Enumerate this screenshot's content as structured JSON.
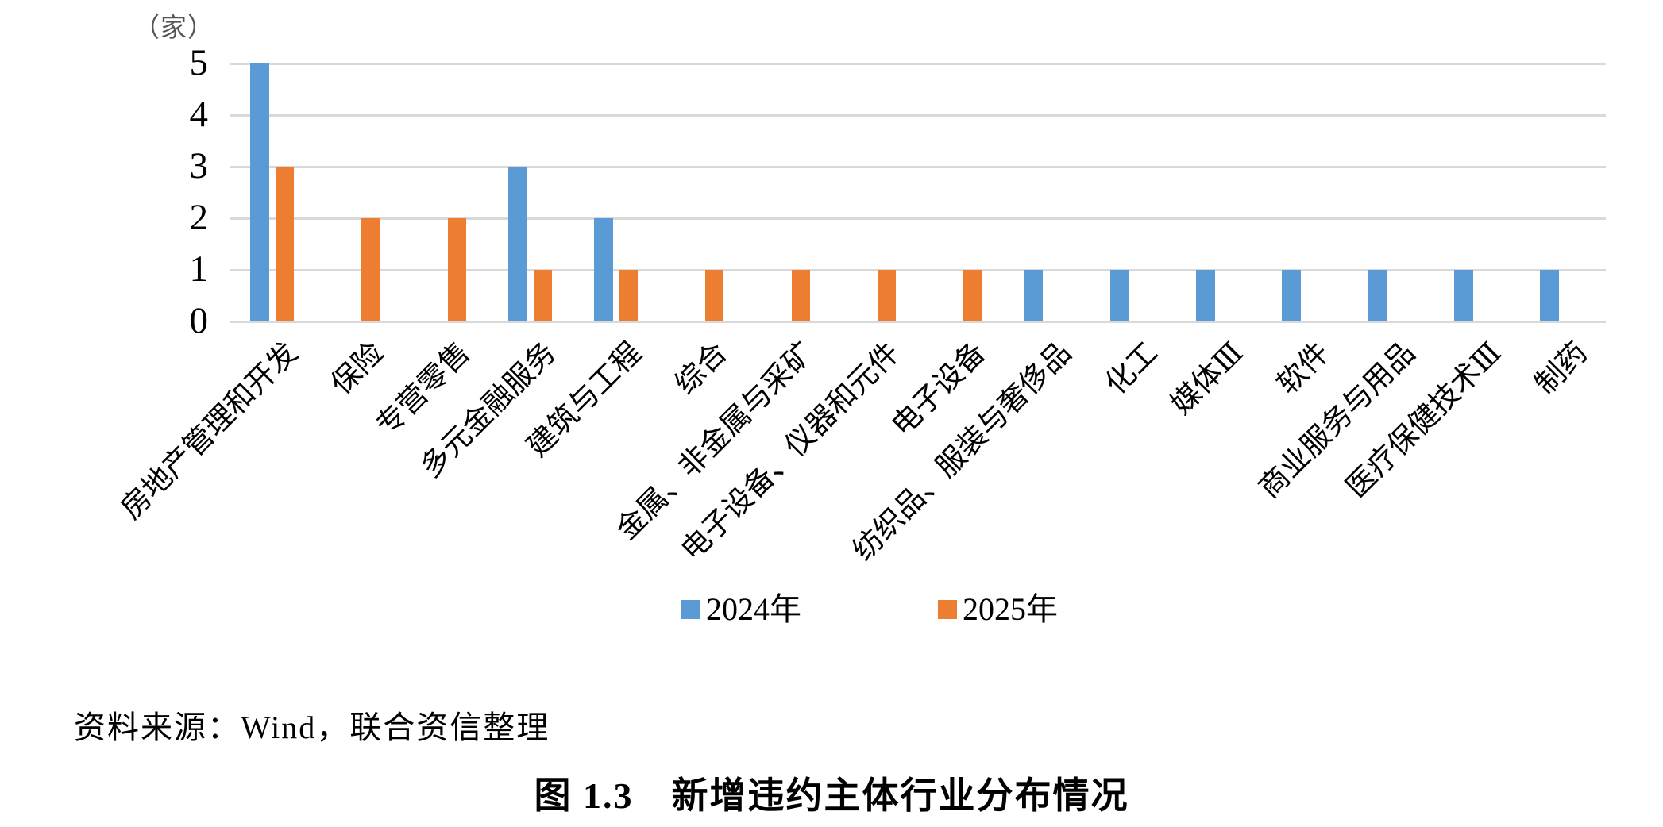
{
  "source": {
    "text": "资料来源：Wind，联合资信整理"
  },
  "chart_data": {
    "type": "bar",
    "title": "图 1.3　新增违约主体行业分布情况",
    "unit_label": "（家）",
    "categories": [
      "房地产管理和开发",
      "保险",
      "专营零售",
      "多元金融服务",
      "建筑与工程",
      "综合",
      "金属、非金属与采矿",
      "电子设备、仪器和元件",
      "电子设备",
      "纺织品、服装与奢侈品",
      "化工",
      "媒体Ⅲ",
      "软件",
      "商业服务与用品",
      "医疗保健技术Ⅲ",
      "制药"
    ],
    "series": [
      {
        "name": "2024年",
        "color": "#5B9BD5",
        "values": [
          5,
          0,
          0,
          3,
          2,
          0,
          0,
          0,
          0,
          1,
          1,
          1,
          1,
          1,
          1,
          1
        ]
      },
      {
        "name": "2025年",
        "color": "#ED7D31",
        "values": [
          3,
          2,
          2,
          1,
          1,
          1,
          1,
          1,
          1,
          0,
          0,
          0,
          0,
          0,
          0,
          0
        ]
      }
    ],
    "xlabel": "",
    "ylabel": "",
    "ylim": [
      0,
      5
    ],
    "yticks": [
      0,
      1,
      2,
      3,
      4,
      5
    ],
    "grid": true,
    "gridline_color": "#D9D9D9",
    "legend_position": "bottom-center"
  }
}
